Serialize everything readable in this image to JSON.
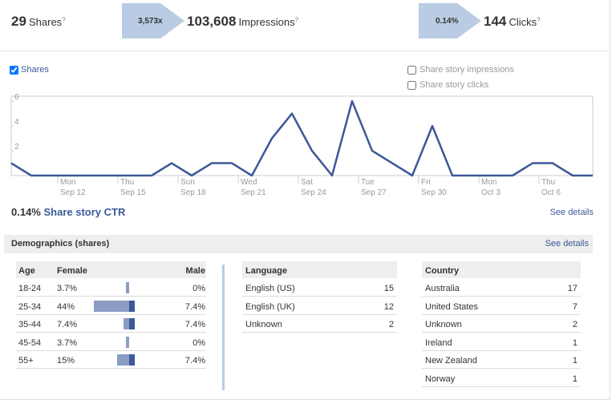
{
  "header": {
    "shares": {
      "count": "29",
      "label": "Shares",
      "help": "?"
    },
    "impressions_ratio": "3,573x",
    "impressions": {
      "count": "103,608",
      "label": "Impressions",
      "help": "?"
    },
    "ctr_ratio": "0.14%",
    "clicks": {
      "count": "144",
      "label": "Clicks",
      "help": "?"
    }
  },
  "shares_checked": true,
  "other_toggles": [
    {
      "label": "Share story impressions",
      "checked": false
    },
    {
      "label": "Share story clicks",
      "checked": false
    }
  ],
  "chart_data": {
    "type": "line",
    "series": [
      {
        "name": "Shares",
        "color": "#3b5998",
        "values": [
          1,
          0,
          0,
          0,
          0,
          0,
          0,
          0,
          1,
          0,
          1,
          1,
          0,
          3,
          5,
          2,
          0,
          6,
          2,
          1,
          0,
          4,
          0,
          0,
          0,
          0,
          1,
          1,
          0,
          0
        ]
      }
    ],
    "categories": [
      null,
      null,
      {
        "day": "Mon",
        "date": "Sep 12"
      },
      null,
      null,
      {
        "day": "Thu",
        "date": "Sep 15"
      },
      null,
      null,
      {
        "day": "Sun",
        "date": "Sep 18"
      },
      null,
      null,
      {
        "day": "Wed",
        "date": "Sep 21"
      },
      null,
      null,
      {
        "day": "Sat",
        "date": "Sep 24"
      },
      null,
      null,
      {
        "day": "Tue",
        "date": "Sep 27"
      },
      null,
      null,
      {
        "day": "Fri",
        "date": "Sep 30"
      },
      null,
      null,
      {
        "day": "Mon",
        "date": "Oct 3"
      },
      null,
      null,
      {
        "day": "Thu",
        "date": "Oct 6"
      },
      null,
      null,
      null
    ],
    "ylim": [
      0,
      6.4
    ],
    "yticks": [
      2,
      4,
      6
    ],
    "grid": false
  },
  "ctr": {
    "value": "0.14%",
    "label": "Share story CTR",
    "link": "See details"
  },
  "demographics": {
    "title": "Demographics (shares)",
    "link": "See details",
    "age": {
      "headers": [
        "Age",
        "Female",
        "Male"
      ],
      "female_color": "#8b9dc3",
      "male_color": "#3b5998",
      "rows": [
        {
          "age": "18-24",
          "female": 3.7,
          "female_label": "3.7%",
          "male": 0,
          "male_label": "0%"
        },
        {
          "age": "25-34",
          "female": 44,
          "female_label": "44%",
          "male": 7.4,
          "male_label": "7.4%"
        },
        {
          "age": "35-44",
          "female": 7.4,
          "female_label": "7.4%",
          "male": 7.4,
          "male_label": "7.4%"
        },
        {
          "age": "45-54",
          "female": 3.7,
          "female_label": "3.7%",
          "male": 0,
          "male_label": "0%"
        },
        {
          "age": "55+",
          "female": 15,
          "female_label": "15%",
          "male": 7.4,
          "male_label": "7.4%"
        }
      ]
    },
    "language": {
      "header": "Language",
      "rows": [
        [
          "English (US)",
          15
        ],
        [
          "English (UK)",
          12
        ],
        [
          "Unknown",
          2
        ]
      ]
    },
    "country": {
      "header": "Country",
      "rows": [
        [
          "Australia",
          17
        ],
        [
          "United States",
          7
        ],
        [
          "Unknown",
          2
        ],
        [
          "Ireland",
          1
        ],
        [
          "New Zealand",
          1
        ],
        [
          "Norway",
          1
        ]
      ]
    }
  }
}
